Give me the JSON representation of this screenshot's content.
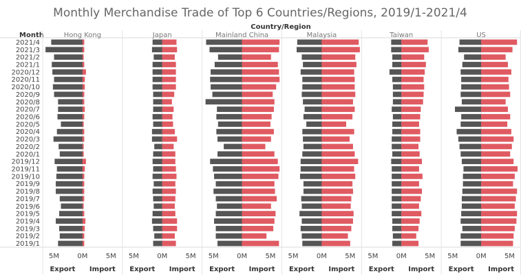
{
  "chart_data": {
    "type": "bar",
    "title": "Monthly Merchandise Trade of Top 6 Countries/Regions, 2019/1-2021/4",
    "column_header": "Country/Region",
    "row_header": "Month",
    "months": [
      "2021/4",
      "2021/3",
      "2021/2",
      "2021/1",
      "2020/12",
      "2020/11",
      "2020/10",
      "2020/9",
      "2020/8",
      "2020/7",
      "2020/6",
      "2020/5",
      "2020/4",
      "2020/3",
      "2020/2",
      "2020/1",
      "2019/12",
      "2019/11",
      "2019/10",
      "2019/9",
      "2019/8",
      "2019/7",
      "2019/6",
      "2019/5",
      "2019/4",
      "2019/3",
      "2019/2",
      "2019/1"
    ],
    "measure_labels": [
      "Export",
      "Import"
    ],
    "tick_labels": [
      "5M",
      "0M",
      "5M"
    ],
    "xlim": [
      -7,
      7
    ],
    "colors": {
      "export": "#555555",
      "import": "#e05a62"
    },
    "regions": [
      {
        "name": "Hong Kong",
        "export": [
          5.5,
          6.5,
          5.0,
          5.4,
          5.3,
          5.0,
          5.2,
          5.0,
          4.3,
          4.3,
          4.4,
          3.8,
          4.5,
          5.1,
          4.2,
          4.0,
          4.9,
          4.5,
          4.6,
          4.7,
          4.7,
          4.0,
          3.8,
          4.1,
          4.7,
          4.1,
          4.0,
          4.3
        ],
        "import": [
          0.3,
          0.3,
          0.2,
          0.3,
          0.6,
          0.4,
          0.4,
          0.3,
          0.3,
          0.4,
          0.3,
          0.2,
          0.3,
          0.3,
          0.2,
          0.2,
          0.6,
          0.4,
          0.3,
          0.3,
          0.3,
          0.3,
          0.2,
          0.3,
          0.5,
          0.4,
          0.3,
          0.3
        ]
      },
      {
        "name": "Japan",
        "export": [
          1.7,
          1.8,
          1.5,
          1.7,
          1.7,
          1.7,
          1.7,
          1.6,
          1.6,
          1.6,
          1.7,
          1.6,
          1.8,
          1.8,
          1.4,
          1.6,
          1.7,
          1.6,
          1.7,
          1.5,
          1.7,
          1.6,
          1.5,
          1.7,
          1.8,
          1.6,
          1.4,
          1.6
        ],
        "import": [
          2.5,
          2.6,
          2.2,
          2.4,
          2.4,
          2.4,
          2.4,
          2.1,
          1.7,
          2.0,
          1.8,
          1.9,
          2.2,
          2.6,
          2.0,
          2.3,
          2.3,
          2.4,
          2.5,
          2.3,
          2.4,
          2.3,
          2.2,
          2.3,
          2.6,
          2.6,
          2.2,
          2.4
        ]
      },
      {
        "name": "Mainland China",
        "export": [
          6.3,
          5.7,
          4.2,
          4.8,
          5.5,
          5.6,
          5.5,
          5.2,
          6.4,
          4.4,
          4.5,
          4.2,
          4.5,
          4.3,
          3.2,
          4.3,
          5.6,
          5.1,
          4.9,
          4.6,
          5.0,
          4.6,
          4.4,
          4.6,
          4.9,
          4.6,
          4.6,
          4.3
        ],
        "import": [
          6.6,
          6.5,
          5.1,
          6.3,
          6.5,
          6.6,
          6.0,
          5.4,
          5.7,
          5.6,
          5.2,
          5.0,
          5.6,
          5.1,
          4.1,
          5.7,
          6.3,
          6.6,
          6.4,
          5.7,
          5.8,
          6.1,
          5.1,
          5.9,
          5.7,
          5.5,
          4.3,
          6.5
        ]
      },
      {
        "name": "Malaysia",
        "export": [
          4.3,
          4.4,
          3.5,
          3.3,
          3.7,
          3.4,
          3.4,
          3.5,
          3.3,
          3.0,
          3.2,
          2.7,
          3.4,
          3.3,
          3.2,
          3.4,
          3.7,
          3.7,
          3.8,
          3.2,
          3.2,
          3.6,
          3.5,
          3.9,
          3.5,
          3.7,
          3.5,
          3.4
        ],
        "import": [
          6.5,
          6.7,
          5.9,
          6.1,
          5.7,
          5.8,
          5.8,
          5.9,
          5.5,
          5.8,
          5.4,
          4.3,
          5.7,
          4.9,
          5.5,
          5.8,
          6.4,
          5.7,
          5.9,
          5.4,
          5.5,
          5.2,
          5.1,
          5.6,
          5.5,
          5.2,
          4.6,
          5.0
        ]
      },
      {
        "name": "Taiwan",
        "export": [
          1.8,
          1.8,
          1.6,
          1.6,
          2.1,
          1.6,
          1.5,
          1.5,
          1.5,
          1.7,
          1.5,
          1.6,
          1.6,
          1.7,
          1.7,
          1.6,
          1.8,
          1.7,
          1.7,
          1.7,
          1.7,
          1.7,
          1.7,
          1.7,
          1.6,
          1.6,
          1.5,
          1.6
        ],
        "import": [
          4.6,
          4.8,
          4.0,
          4.3,
          4.1,
          3.9,
          4.0,
          3.9,
          3.8,
          3.4,
          3.3,
          3.1,
          3.3,
          3.3,
          3.0,
          3.2,
          3.6,
          3.1,
          3.7,
          3.1,
          3.6,
          3.4,
          3.1,
          3.5,
          3.2,
          3.0,
          2.6,
          3.0
        ]
      },
      {
        "name": "US",
        "export": [
          3.8,
          4.0,
          3.0,
          3.3,
          3.6,
          3.5,
          3.5,
          3.6,
          3.4,
          4.6,
          3.5,
          3.6,
          4.3,
          4.0,
          3.8,
          3.6,
          3.4,
          3.1,
          3.2,
          3.2,
          3.3,
          3.4,
          3.4,
          3.5,
          3.6,
          3.3,
          3.6,
          3.6
        ],
        "import": [
          6.3,
          5.5,
          4.3,
          4.7,
          5.3,
          4.8,
          4.9,
          5.1,
          4.3,
          4.7,
          5.1,
          4.6,
          5.3,
          5.7,
          5.4,
          5.1,
          5.7,
          6.4,
          5.9,
          5.6,
          6.3,
          6.1,
          5.9,
          6.3,
          6.2,
          5.9,
          5.7,
          5.6
        ]
      }
    ]
  }
}
